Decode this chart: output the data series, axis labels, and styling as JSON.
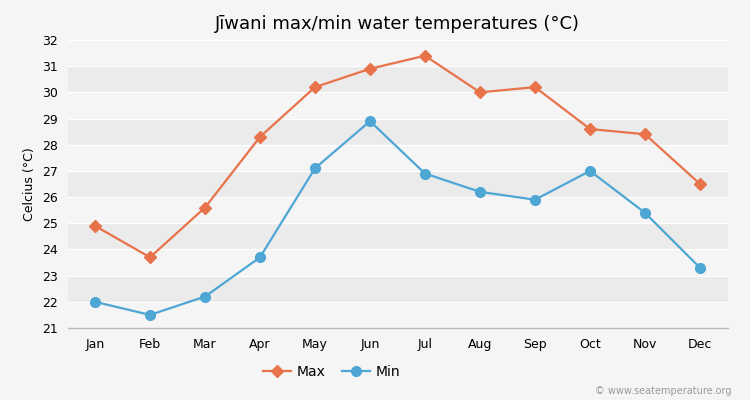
{
  "title": "Jīwani max/min water temperatures (°C)",
  "ylabel": "Celcius (°C)",
  "months": [
    "Jan",
    "Feb",
    "Mar",
    "Apr",
    "May",
    "Jun",
    "Jul",
    "Aug",
    "Sep",
    "Oct",
    "Nov",
    "Dec"
  ],
  "max_temps": [
    24.9,
    23.7,
    25.6,
    28.3,
    30.2,
    30.9,
    31.4,
    30.0,
    30.2,
    28.6,
    28.4,
    26.5
  ],
  "min_temps": [
    22.0,
    21.5,
    22.2,
    23.7,
    27.1,
    28.9,
    26.9,
    26.2,
    25.9,
    27.0,
    25.4,
    23.3
  ],
  "max_color": "#e8724a",
  "min_color": "#4da6d4",
  "max_marker": "D",
  "min_marker": "o",
  "max_marker_size": 6,
  "min_marker_size": 7,
  "line_width": 1.6,
  "ylim": [
    21,
    32
  ],
  "yticks": [
    21,
    22,
    23,
    24,
    25,
    26,
    27,
    28,
    29,
    30,
    31,
    32
  ],
  "outer_bg": "#f5f5f5",
  "plot_bg": "#ebebeb",
  "stripe_color": "#f5f5f5",
  "grid_color": "#ffffff",
  "title_fontsize": 13,
  "label_fontsize": 9,
  "tick_fontsize": 9,
  "legend_fontsize": 10,
  "watermark": "© www.seatemperature.org"
}
